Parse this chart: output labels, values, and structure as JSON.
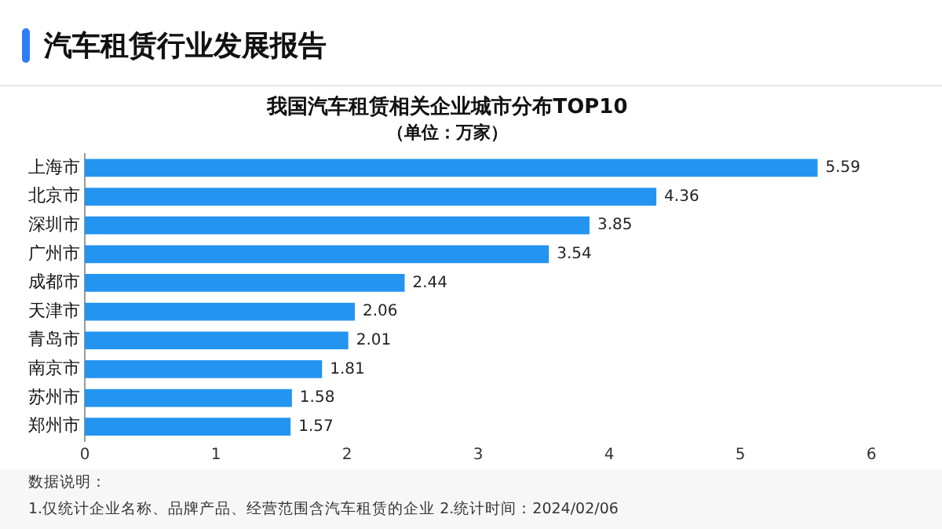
{
  "chart_data": {
    "type": "bar",
    "orientation": "horizontal",
    "title": "汽车租赁行业发展报告",
    "subtitle": "我国汽车租赁相关企业城市分布TOP10",
    "xlabel": "（单位：万家）",
    "categories": [
      "上海市",
      "北京市",
      "深圳市",
      "广州市",
      "成都市",
      "天津市",
      "青岛市",
      "南京市",
      "苏州市",
      "郑州市"
    ],
    "values": [
      5.59,
      4.36,
      3.85,
      3.54,
      2.44,
      2.06,
      2.01,
      1.81,
      1.58,
      1.57
    ],
    "color": "#2394f0",
    "xlim": [
      0,
      6
    ],
    "xticks": [
      0,
      1,
      2,
      3,
      4,
      5,
      6
    ],
    "grid": false,
    "legend": false,
    "data_labels": true,
    "annotations": [
      "数据说明：",
      "1.仅统计企业名称、品牌产品、经营范围含汽车租赁的企业  2.统计时间：2024/02/06"
    ]
  }
}
